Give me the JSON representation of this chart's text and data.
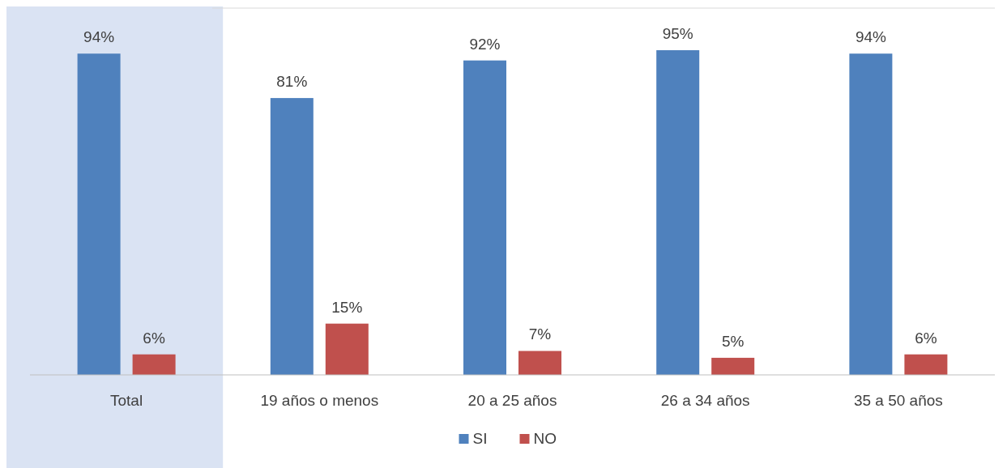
{
  "chart_data": {
    "type": "bar",
    "categories": [
      "Total",
      "19 años o menos",
      "20 a 25 años",
      "26 a 34 años",
      "35 a 50 años"
    ],
    "series": [
      {
        "name": "SI",
        "color": "#4f81bd",
        "values": [
          94,
          81,
          92,
          95,
          94
        ],
        "value_labels": [
          "94%",
          "81%",
          "92%",
          "95%",
          "94%"
        ]
      },
      {
        "name": "NO",
        "color": "#c0504d",
        "values": [
          6,
          15,
          7,
          5,
          6
        ],
        "value_labels": [
          "6%",
          "15%",
          "7%",
          "5%",
          "6%"
        ]
      }
    ],
    "bands": [
      {
        "axis": "x",
        "from": "Total",
        "to": "Total",
        "color": "#dae3f3"
      }
    ],
    "legend": "bottom"
  }
}
